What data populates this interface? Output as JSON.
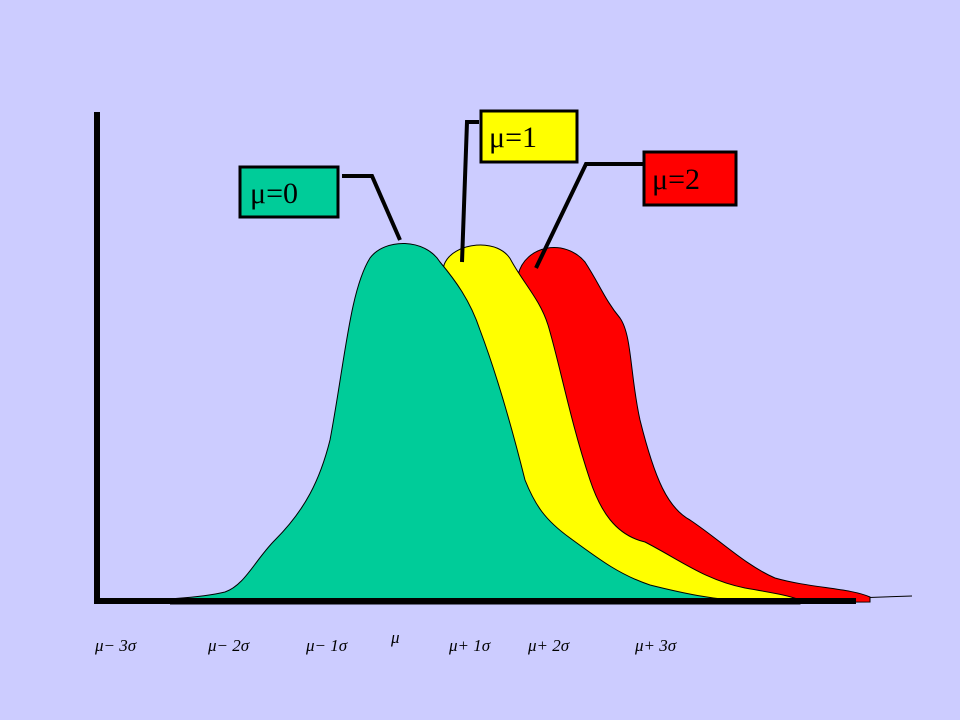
{
  "colors": {
    "background": "#ccccff",
    "mu0": "#00cc99",
    "mu1": "#ffff00",
    "mu2": "#ff0000",
    "axis": "#000000"
  },
  "labels": {
    "mu0": "μ=0",
    "mu1": "μ=1",
    "mu2": "μ=2"
  },
  "x_axis": {
    "ticks": [
      "μ− 3σ",
      "μ− 2σ",
      "μ− 1σ",
      "μ",
      "μ+ 1σ",
      "μ+ 2σ",
      "μ+ 3σ"
    ]
  }
}
